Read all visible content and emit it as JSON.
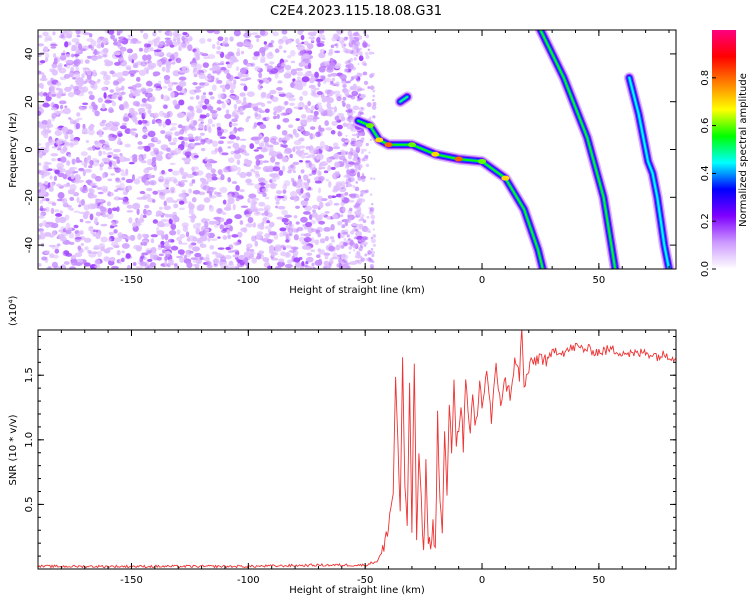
{
  "title": "C2E4.2023.115.18.08.G31",
  "chart_data": [
    {
      "type": "heatmap",
      "title": "C2E4.2023.115.18.08.G31",
      "xlabel": "Height of straight line (km)",
      "ylabel": "Frequency (Hz)",
      "xlim": [
        -190,
        83
      ],
      "ylim": [
        -50,
        50
      ],
      "xticks": [
        -150,
        -100,
        -50,
        0,
        50
      ],
      "yticks": [
        -40,
        -20,
        0,
        20,
        40
      ],
      "colorbar": {
        "label": "Normalized spectral amplitude",
        "range": [
          0,
          1
        ],
        "ticks": [
          "0.0",
          "0.2",
          "0.4",
          "0.6",
          "0.8"
        ],
        "tick_values": [
          0.0,
          0.2,
          0.4,
          0.6,
          0.8
        ],
        "colormap": [
          "#ffffff",
          "#cc99ff",
          "#7f00ff",
          "#0000ff",
          "#00ffff",
          "#00ff00",
          "#ffff00",
          "#ff8000",
          "#ff0000",
          "#ff0080"
        ]
      },
      "noise_region": {
        "x_range": [
          -190,
          -50
        ],
        "y_range": [
          -50,
          50
        ],
        "description_level": "low amplitude speckle"
      },
      "features": [
        {
          "name": "",
          "points": [
            [
              -53,
              12
            ],
            [
              -48,
              10
            ],
            [
              -44,
              4
            ],
            [
              -40,
              2
            ],
            [
              -30,
              2
            ],
            [
              -20,
              -2
            ],
            [
              -10,
              -4
            ],
            [
              0,
              -5
            ],
            [
              10,
              -12
            ],
            [
              18,
              -25
            ],
            [
              24,
              -42
            ],
            [
              26,
              -50
            ]
          ],
          "peak": 0.9
        },
        {
          "name": "",
          "points": [
            [
              25,
              50
            ],
            [
              35,
              30
            ],
            [
              45,
              5
            ],
            [
              52,
              -20
            ],
            [
              57,
              -50
            ]
          ],
          "peak": 0.55
        },
        {
          "name": "",
          "points": [
            [
              63,
              30
            ],
            [
              67,
              15
            ],
            [
              69,
              5
            ],
            [
              71,
              -5
            ],
            [
              73,
              -10
            ],
            [
              75,
              -20
            ],
            [
              78,
              -40
            ],
            [
              80,
              -50
            ]
          ],
          "peak": 0.45
        },
        {
          "name": "",
          "points": [
            [
              -35,
              20
            ],
            [
              -32,
              22
            ]
          ],
          "peak": 0.5
        }
      ]
    },
    {
      "type": "line",
      "xlabel": "Height of straight line (km)",
      "ylabel": "SNR (10 * v/v)",
      "y_multiplier": "(x10⁴)",
      "xlim": [
        -190,
        83
      ],
      "ylim": [
        0,
        1.85
      ],
      "xticks": [
        -150,
        -100,
        -50,
        0,
        50
      ],
      "yticks": [
        0.5,
        1.0,
        1.5
      ],
      "ytick_labels": [
        "0.5",
        "1.0",
        "1.5"
      ],
      "color": "#ee3333",
      "series": [
        {
          "x": [
            -190,
            -160,
            -130,
            -100,
            -70,
            -50,
            -45,
            -42,
            -40,
            -38,
            -37,
            -36,
            -35,
            -34,
            -33,
            -32,
            -31,
            -30,
            -29,
            -28,
            -27,
            -26,
            -25,
            -24,
            -23,
            -22,
            -21,
            -20,
            -19,
            -18,
            -17,
            -16,
            -15,
            -14,
            -13,
            -12,
            -11,
            -10,
            -9,
            -8,
            -7,
            -6,
            -5,
            -4,
            -3,
            -2,
            -1,
            0,
            2,
            4,
            6,
            8,
            10,
            12,
            14,
            16,
            17,
            18,
            20,
            22,
            25,
            28,
            31,
            35,
            40,
            45,
            50,
            55,
            60,
            65,
            70,
            75,
            80,
            83
          ],
          "values": [
            0.02,
            0.02,
            0.02,
            0.02,
            0.03,
            0.03,
            0.06,
            0.15,
            0.35,
            0.6,
            1.48,
            1.0,
            0.4,
            1.65,
            0.6,
            0.3,
            1.45,
            0.3,
            1.62,
            0.25,
            0.9,
            0.5,
            0.1,
            0.8,
            0.25,
            0.15,
            0.35,
            0.12,
            1.2,
            0.5,
            0.3,
            1.05,
            0.55,
            1.3,
            0.85,
            1.5,
            0.95,
            1.1,
            1.3,
            0.95,
            1.45,
            1.2,
            1.0,
            1.35,
            1.1,
            1.2,
            1.45,
            1.25,
            1.55,
            1.15,
            1.55,
            1.3,
            1.45,
            1.35,
            1.6,
            1.5,
            1.85,
            1.4,
            1.55,
            1.6,
            1.65,
            1.6,
            1.7,
            1.68,
            1.72,
            1.7,
            1.68,
            1.7,
            1.68,
            1.66,
            1.68,
            1.65,
            1.66,
            1.63
          ]
        }
      ]
    }
  ]
}
